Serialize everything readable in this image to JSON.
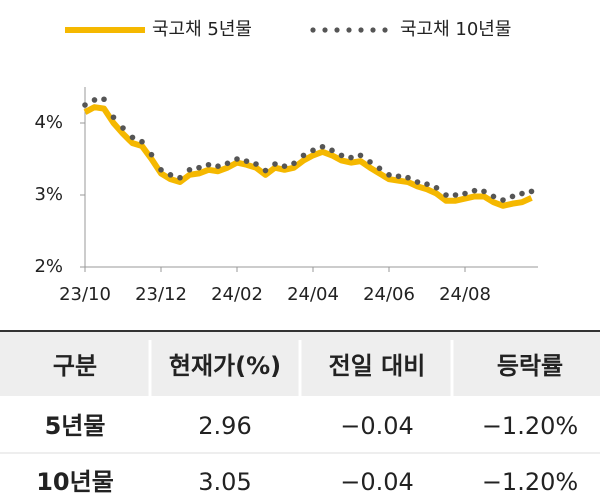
{
  "chart_data": {
    "type": "line",
    "categories": [
      "23/10",
      null,
      null,
      null,
      null,
      null,
      null,
      null,
      "23/12",
      null,
      null,
      null,
      null,
      null,
      null,
      null,
      "24/02",
      null,
      null,
      null,
      null,
      null,
      null,
      null,
      "24/04",
      null,
      null,
      null,
      null,
      null,
      null,
      null,
      "24/06",
      null,
      null,
      null,
      null,
      null,
      null,
      null,
      "24/08",
      null,
      null,
      null,
      null,
      null,
      null,
      null
    ],
    "series": [
      {
        "name": "국고채 5년물",
        "color": "#f5b800",
        "style": "solid",
        "values": [
          4.15,
          4.22,
          4.2,
          4.0,
          3.85,
          3.72,
          3.68,
          3.5,
          3.3,
          3.22,
          3.18,
          3.28,
          3.3,
          3.35,
          3.33,
          3.38,
          3.45,
          3.42,
          3.38,
          3.28,
          3.38,
          3.35,
          3.38,
          3.48,
          3.55,
          3.6,
          3.55,
          3.48,
          3.45,
          3.47,
          3.38,
          3.3,
          3.22,
          3.2,
          3.18,
          3.12,
          3.08,
          3.02,
          2.92,
          2.92,
          2.95,
          2.98,
          2.98,
          2.9,
          2.85,
          2.88,
          2.9,
          2.96
        ]
      },
      {
        "name": "국고채 10년물",
        "color": "#555555",
        "style": "dotted",
        "values": [
          4.25,
          4.32,
          4.33,
          4.08,
          3.93,
          3.8,
          3.74,
          3.56,
          3.35,
          3.28,
          3.24,
          3.35,
          3.38,
          3.42,
          3.4,
          3.44,
          3.5,
          3.47,
          3.43,
          3.34,
          3.43,
          3.4,
          3.44,
          3.55,
          3.62,
          3.67,
          3.62,
          3.55,
          3.52,
          3.55,
          3.46,
          3.37,
          3.28,
          3.26,
          3.24,
          3.18,
          3.15,
          3.1,
          3.0,
          3.0,
          3.02,
          3.06,
          3.05,
          2.98,
          2.93,
          2.98,
          3.02,
          3.05
        ]
      }
    ],
    "ylim": [
      2,
      4.5
    ],
    "yticks": [
      {
        "value": 2,
        "label": "2%"
      },
      {
        "value": 3,
        "label": "3%"
      },
      {
        "value": 4,
        "label": "4%"
      }
    ],
    "grid": false,
    "legend": "top"
  },
  "table": {
    "header": [
      "구분",
      "현재가(%)",
      "전일 대비",
      "등락률"
    ],
    "rows": [
      [
        "5년물",
        "2.96",
        "−0.04",
        "−1.20%"
      ],
      [
        "10년물",
        "3.05",
        "−0.04",
        "−1.20%"
      ]
    ]
  }
}
